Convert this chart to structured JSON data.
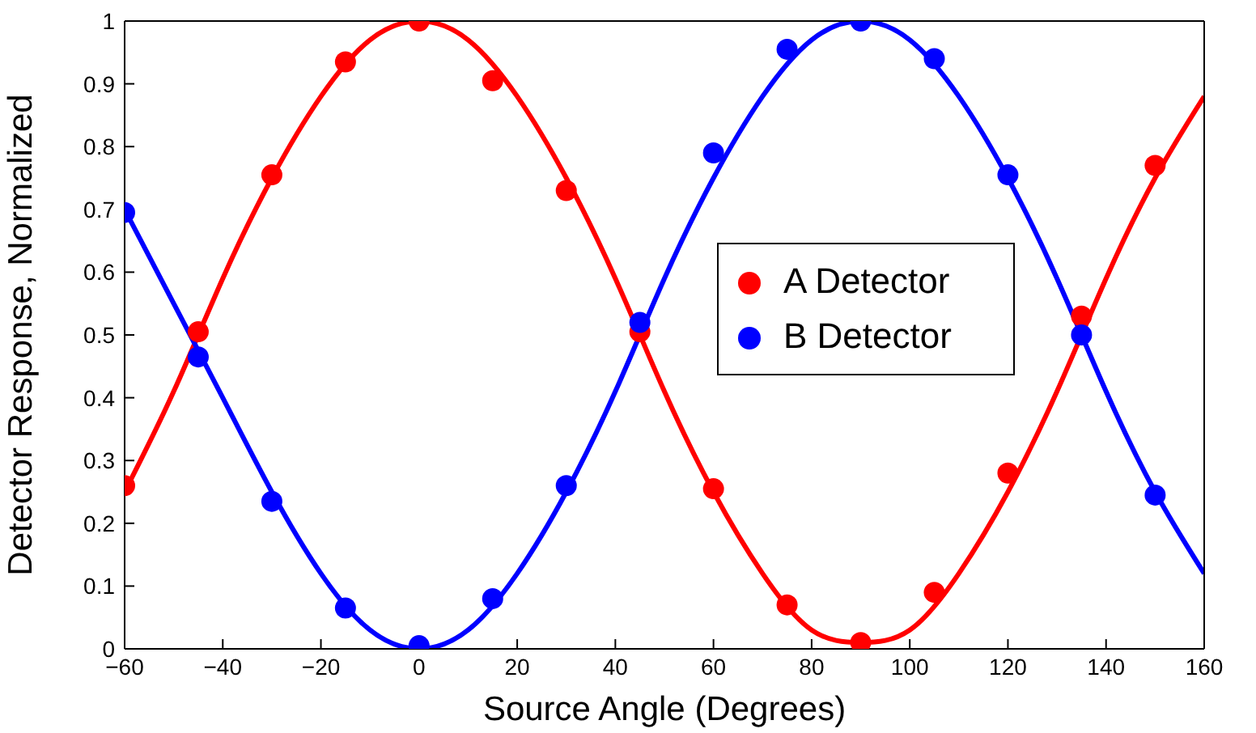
{
  "chart_data": {
    "type": "scatter",
    "xlabel": "Source Angle (Degrees)",
    "ylabel": "Detector Response, Normalized",
    "xlim": [
      -60,
      160
    ],
    "xticks": [
      -60,
      -40,
      -20,
      0,
      20,
      40,
      60,
      80,
      100,
      120,
      140,
      160
    ],
    "ylim": [
      0,
      1
    ],
    "yticks": [
      0,
      0.1,
      0.2,
      0.3,
      0.4,
      0.5,
      0.6,
      0.7,
      0.8,
      0.9,
      1
    ],
    "grid": false,
    "legend": "right",
    "series": [
      {
        "type": "line",
        "color": "#ff0000",
        "marker": "none",
        "line_style": "solid",
        "x": [
          -60,
          -50,
          -40,
          -30,
          -20,
          -10,
          0,
          10,
          20,
          30,
          40,
          50,
          60,
          70,
          80,
          90,
          100,
          110,
          120,
          130,
          140,
          150,
          160
        ],
        "values": [
          0.25,
          0.41,
          0.59,
          0.75,
          0.88,
          0.97,
          1,
          0.97,
          0.88,
          0.75,
          0.59,
          0.41,
          0.25,
          0.12,
          0.03,
          0.01,
          0.03,
          0.12,
          0.25,
          0.41,
          0.59,
          0.75,
          0.88
        ]
      },
      {
        "type": "line",
        "color": "#0000ff",
        "marker": "none",
        "line_style": "solid",
        "x": [
          -60,
          -50,
          -40,
          -30,
          -20,
          -10,
          0,
          10,
          20,
          30,
          40,
          50,
          60,
          70,
          80,
          90,
          100,
          110,
          120,
          130,
          140,
          150,
          160
        ],
        "values": [
          0.7,
          0.55,
          0.4,
          0.25,
          0.12,
          0.03,
          0,
          0.03,
          0.12,
          0.25,
          0.41,
          0.59,
          0.75,
          0.88,
          0.97,
          1,
          0.97,
          0.88,
          0.75,
          0.59,
          0.41,
          0.25,
          0.12
        ]
      },
      {
        "name": "A Detector",
        "color": "#ff0000",
        "marker": "circle",
        "x": [
          -60,
          -45,
          -30,
          -15,
          0,
          15,
          30,
          45,
          60,
          75,
          90,
          105,
          120,
          135,
          150
        ],
        "values": [
          0.26,
          0.505,
          0.755,
          0.935,
          1.0,
          0.905,
          0.73,
          0.505,
          0.255,
          0.07,
          0.01,
          0.09,
          0.28,
          0.53,
          0.77
        ]
      },
      {
        "name": "B Detector",
        "color": "#0000ff",
        "marker": "circle",
        "x": [
          -60,
          -45,
          -30,
          -15,
          0,
          15,
          30,
          45,
          60,
          75,
          90,
          105,
          120,
          135,
          150
        ],
        "values": [
          0.695,
          0.465,
          0.235,
          0.065,
          0.005,
          0.08,
          0.26,
          0.52,
          0.79,
          0.955,
          1.0,
          0.94,
          0.755,
          0.5,
          0.245
        ]
      }
    ]
  }
}
